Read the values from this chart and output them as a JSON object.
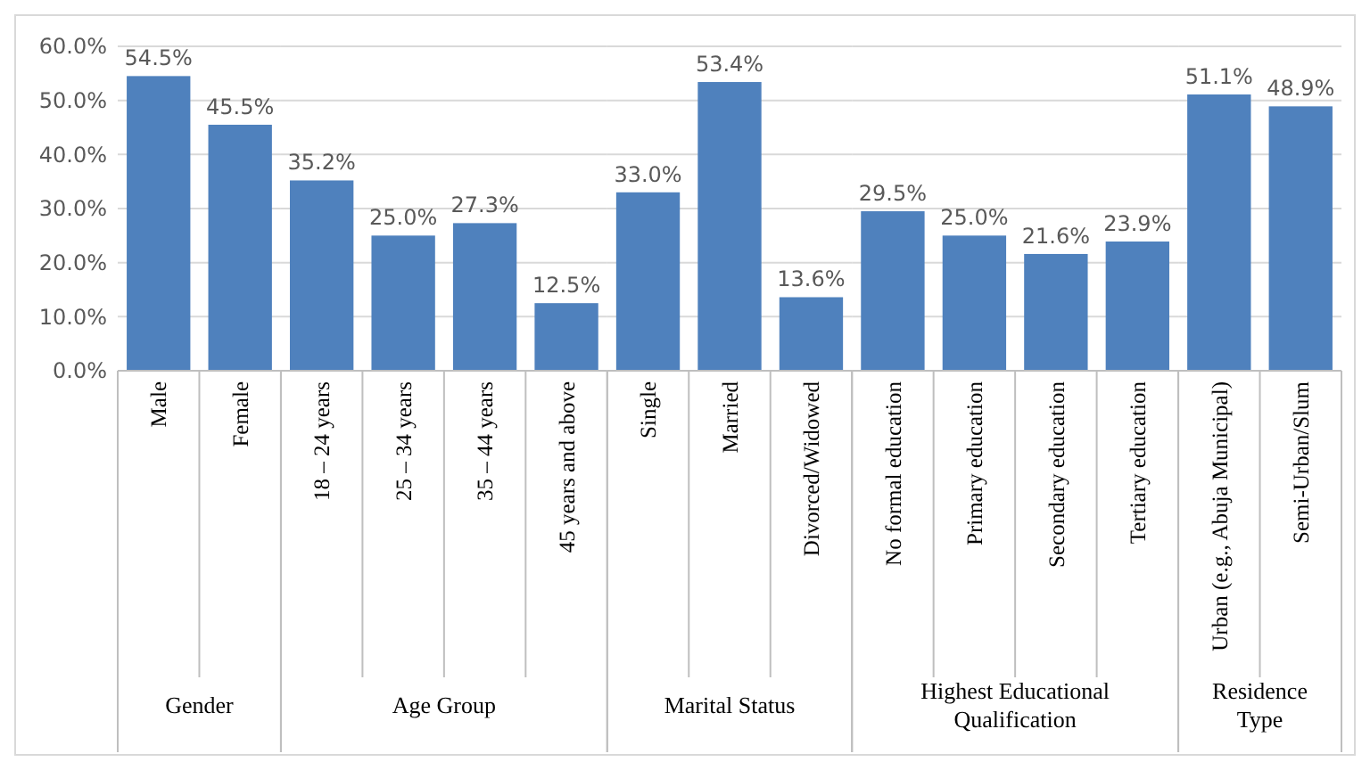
{
  "chart_data": [
    {
      "type": "bar",
      "xlabel": "Gender",
      "categories": [
        "Male",
        "Female"
      ],
      "values": [
        54.5,
        45.5
      ],
      "value_labels": [
        "54.5%",
        "45.5%"
      ],
      "color": "#4f81bd",
      "ylim": [
        0,
        60
      ],
      "yticks": [
        {
          "value": 0,
          "label": "0.0%"
        },
        {
          "value": 10,
          "label": "10.0%"
        },
        {
          "value": 20,
          "label": "20.0%"
        },
        {
          "value": 30,
          "label": "30.0%"
        },
        {
          "value": 40,
          "label": "40.0%"
        },
        {
          "value": 50,
          "label": "50.0%"
        },
        {
          "value": 60,
          "label": "60.0%"
        }
      ],
      "grid": "y"
    },
    {
      "type": "bar",
      "xlabel": "Age Group",
      "categories": [
        "18 – 24 years",
        "25 – 34 years",
        "35 – 44 years",
        "45 years and above"
      ],
      "values": [
        35.2,
        25.0,
        27.3,
        12.5
      ],
      "value_labels": [
        "35.2%",
        "25.0%",
        "27.3%",
        "12.5%"
      ],
      "color": "#4f81bd",
      "ylim": [
        0,
        60
      ],
      "yticks": [
        {
          "value": 0,
          "label": null
        },
        {
          "value": 10,
          "label": null
        },
        {
          "value": 20,
          "label": null
        },
        {
          "value": 30,
          "label": null
        },
        {
          "value": 40,
          "label": null
        },
        {
          "value": 50,
          "label": null
        },
        {
          "value": 60,
          "label": null
        }
      ],
      "grid": "y",
      "tick_labels": "x"
    },
    {
      "type": "bar",
      "xlabel": "Marital Status",
      "categories": [
        "Single",
        "Married",
        "Divorced/Widowed"
      ],
      "values": [
        33.0,
        53.4,
        13.6
      ],
      "value_labels": [
        "33.0%",
        "53.4%",
        "13.6%"
      ],
      "color": "#4f81bd",
      "ylim": [
        0,
        60
      ],
      "yticks": [
        {
          "value": 0,
          "label": null
        },
        {
          "value": 10,
          "label": null
        },
        {
          "value": 20,
          "label": null
        },
        {
          "value": 30,
          "label": null
        },
        {
          "value": 40,
          "label": null
        },
        {
          "value": 50,
          "label": null
        },
        {
          "value": 60,
          "label": null
        }
      ],
      "grid": "y",
      "tick_labels": "x"
    },
    {
      "type": "bar",
      "xlabel": "Highest Educational Qualification",
      "categories": [
        "No formal education",
        "Primary education",
        "Secondary education",
        "Tertiary education"
      ],
      "values": [
        29.5,
        25.0,
        21.6,
        23.9
      ],
      "value_labels": [
        "29.5%",
        "25.0%",
        "21.6%",
        "23.9%"
      ],
      "color": "#4f81bd",
      "ylim": [
        0,
        60
      ],
      "yticks": [
        {
          "value": 0,
          "label": null
        },
        {
          "value": 10,
          "label": null
        },
        {
          "value": 20,
          "label": null
        },
        {
          "value": 30,
          "label": null
        },
        {
          "value": 40,
          "label": null
        },
        {
          "value": 50,
          "label": null
        },
        {
          "value": 60,
          "label": null
        }
      ],
      "grid": "y",
      "tick_labels": "x"
    },
    {
      "type": "bar",
      "xlabel": "Residence Type",
      "categories": [
        "Urban (e.g., Abuja Municipal)",
        "Semi-Urban/Slum"
      ],
      "values": [
        51.1,
        48.9
      ],
      "value_labels": [
        "51.1%",
        "48.9%"
      ],
      "color": "#4f81bd",
      "ylim": [
        0,
        60
      ],
      "yticks": [
        {
          "value": 0,
          "label": null
        },
        {
          "value": 10,
          "label": null
        },
        {
          "value": 20,
          "label": null
        },
        {
          "value": 30,
          "label": null
        },
        {
          "value": 40,
          "label": null
        },
        {
          "value": 50,
          "label": null
        },
        {
          "value": 60,
          "label": null
        }
      ],
      "grid": "y",
      "tick_labels": "x"
    }
  ]
}
